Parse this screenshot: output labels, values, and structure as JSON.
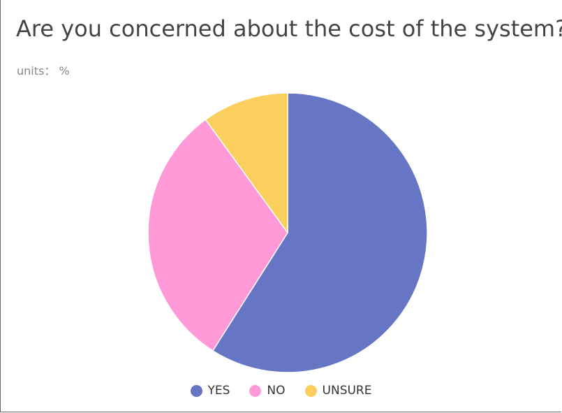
{
  "chart_data": {
    "type": "pie",
    "title": "Are you concerned about the cost of the system?",
    "subtitle": "units： %",
    "categories": [
      "YES",
      "NO",
      "UNSURE"
    ],
    "values": [
      59,
      31,
      10
    ],
    "colors": [
      "#6675c4",
      "#ff99d8",
      "#fbcf5e"
    ],
    "legend_position": "bottom"
  }
}
